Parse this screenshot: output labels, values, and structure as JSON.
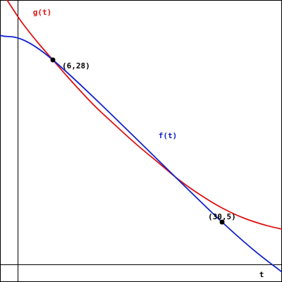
{
  "chart_data": {
    "type": "line",
    "title": "",
    "xlabel": "t",
    "ylabel": "",
    "xlim": [
      -1.5,
      38.5
    ],
    "ylim": [
      -3.5,
      36.5
    ],
    "grid": false,
    "legend": "none",
    "series": [
      {
        "name": "g(t)",
        "color": "#dd1111",
        "x": [
          -0.5,
          1,
          2,
          4,
          6,
          8,
          10,
          12,
          15,
          18,
          21,
          24,
          27,
          30,
          33,
          36,
          38.5
        ],
        "y": [
          36.5,
          34.2,
          32.8,
          30.3,
          28,
          25.7,
          23.5,
          21.4,
          18.6,
          15.9,
          13.4,
          10.9,
          8.8,
          7.0,
          5.6,
          4.6,
          4.0
        ]
      },
      {
        "name": "f(t)",
        "color": "#1122cc",
        "x": [
          -1.5,
          6,
          30,
          38.5
        ],
        "y": [
          31.5,
          28,
          5,
          -2.1
        ]
      }
    ],
    "points": [
      {
        "label": "(6,28)",
        "x": 6,
        "y": 28
      },
      {
        "label": "(30,5)",
        "x": 30,
        "y": 5
      }
    ]
  }
}
